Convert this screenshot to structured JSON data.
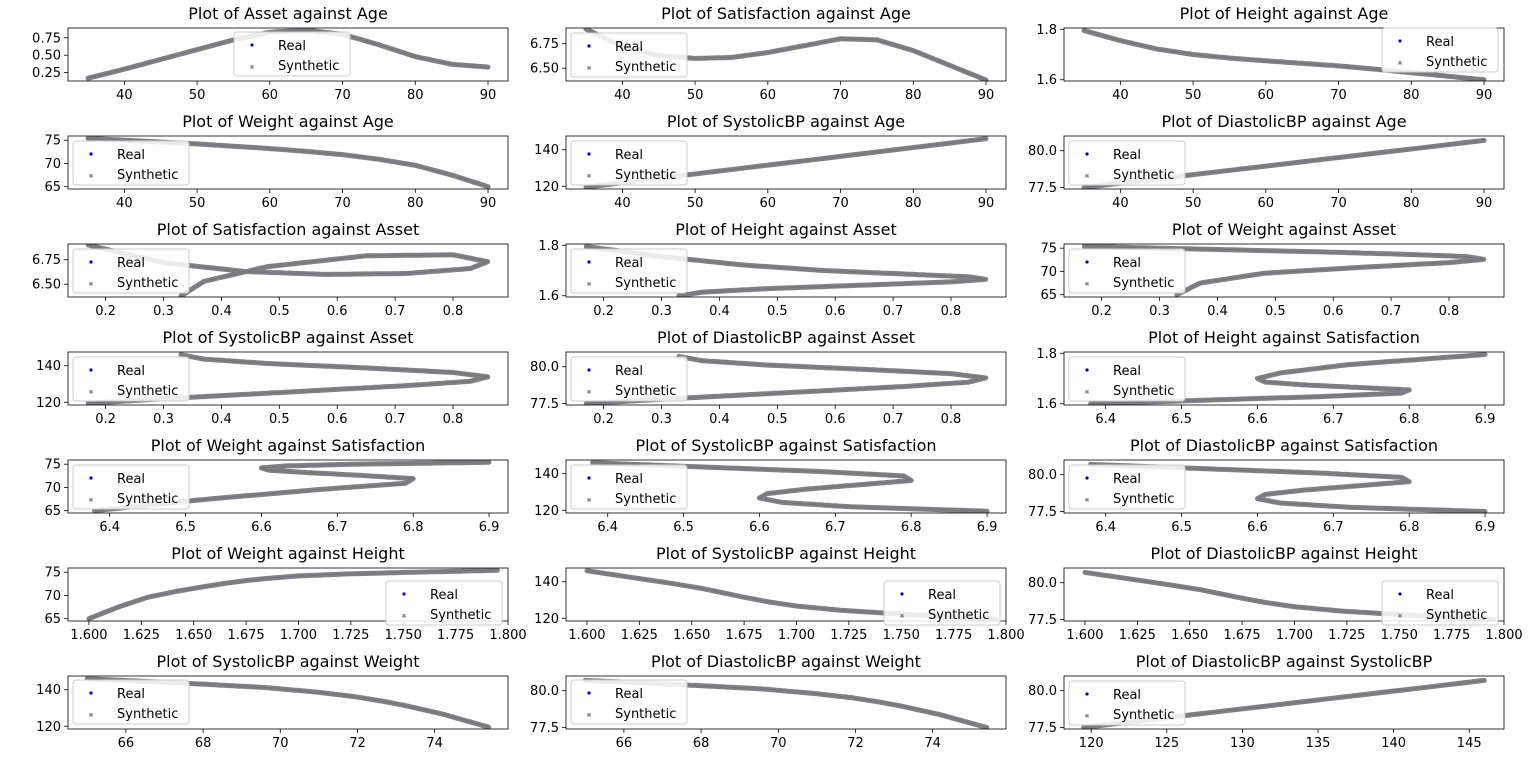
{
  "figure": {
    "legend_real": "Real",
    "legend_synthetic": "Synthetic",
    "synthetic_color": "#808080",
    "real_color": "#0000cc"
  },
  "chart_data": [
    {
      "type": "scatter",
      "title": "Plot of Asset against Age",
      "xlim": [
        32.25,
        92.75
      ],
      "ylim": [
        0.13,
        0.89
      ],
      "xticks": [
        40,
        50,
        60,
        70,
        80,
        90
      ],
      "yticks": [
        0.25,
        0.5,
        0.75
      ],
      "ytick_labels": [
        "0.25",
        "0.50",
        "0.75"
      ],
      "legend": "upper-center",
      "x": [
        35,
        40,
        45,
        50,
        55,
        60,
        65,
        70,
        75,
        80,
        85,
        90
      ],
      "y": [
        0.17,
        0.3,
        0.44,
        0.58,
        0.72,
        0.83,
        0.86,
        0.8,
        0.65,
        0.48,
        0.37,
        0.33
      ]
    },
    {
      "type": "scatter",
      "title": "Plot of Satisfaction against Age",
      "xlim": [
        32.25,
        92.75
      ],
      "ylim": [
        6.37,
        6.91
      ],
      "xticks": [
        40,
        50,
        60,
        70,
        80,
        90
      ],
      "yticks": [
        6.5,
        6.75
      ],
      "ytick_labels": [
        "6.50",
        "6.75"
      ],
      "legend": "upper-left",
      "x": [
        35,
        40,
        45,
        50,
        55,
        60,
        65,
        70,
        75,
        80,
        85,
        90
      ],
      "y": [
        6.9,
        6.72,
        6.63,
        6.6,
        6.61,
        6.66,
        6.73,
        6.8,
        6.79,
        6.68,
        6.53,
        6.38
      ]
    },
    {
      "type": "scatter",
      "title": "Plot of Height against Age",
      "xlim": [
        32.25,
        92.75
      ],
      "ylim": [
        1.595,
        1.805
      ],
      "xticks": [
        40,
        50,
        60,
        70,
        80,
        90
      ],
      "yticks": [
        1.6,
        1.8
      ],
      "ytick_labels": [
        "1.6",
        "1.8"
      ],
      "legend": "upper-right",
      "x": [
        35,
        40,
        45,
        50,
        55,
        60,
        65,
        70,
        75,
        80,
        85,
        90
      ],
      "y": [
        1.795,
        1.755,
        1.722,
        1.7,
        1.686,
        1.675,
        1.665,
        1.655,
        1.642,
        1.628,
        1.614,
        1.6
      ]
    },
    {
      "type": "scatter",
      "title": "Plot of Weight against Age",
      "xlim": [
        32.25,
        92.75
      ],
      "ylim": [
        64.5,
        75.9
      ],
      "xticks": [
        40,
        50,
        60,
        70,
        80,
        90
      ],
      "yticks": [
        65,
        70,
        75
      ],
      "ytick_labels": [
        "65",
        "70",
        "75"
      ],
      "legend": "upper-left",
      "x": [
        35,
        40,
        45,
        50,
        55,
        60,
        65,
        70,
        75,
        80,
        85,
        90
      ],
      "y": [
        75.4,
        75.0,
        74.6,
        74.2,
        73.7,
        73.2,
        72.6,
        71.9,
        70.9,
        69.6,
        67.5,
        65
      ]
    },
    {
      "type": "scatter",
      "title": "Plot of SystolicBP against Age",
      "xlim": [
        32.25,
        92.75
      ],
      "ylim": [
        118.5,
        147.5
      ],
      "xticks": [
        40,
        50,
        60,
        70,
        80,
        90
      ],
      "yticks": [
        120,
        140
      ],
      "ytick_labels": [
        "120",
        "140"
      ],
      "legend": "upper-left",
      "x": [
        35,
        90
      ],
      "y": [
        119.5,
        146
      ]
    },
    {
      "type": "scatter",
      "title": "Plot of DiastolicBP against Age",
      "xlim": [
        32.25,
        92.75
      ],
      "ylim": [
        77.4,
        81.0
      ],
      "xticks": [
        40,
        50,
        60,
        70,
        80,
        90
      ],
      "yticks": [
        77.5,
        80
      ],
      "ytick_labels": [
        "77.5",
        "80.0"
      ],
      "legend": "upper-left",
      "x": [
        35,
        90
      ],
      "y": [
        77.5,
        80.7
      ]
    },
    {
      "type": "scatter",
      "title": "Plot of Satisfaction against Asset",
      "xlim": [
        0.135,
        0.895
      ],
      "ylim": [
        6.37,
        6.91
      ],
      "xticks": [
        0.2,
        0.3,
        0.4,
        0.5,
        0.6,
        0.7,
        0.8
      ],
      "yticks": [
        6.5,
        6.75
      ],
      "ytick_labels": [
        "6.50",
        "6.75"
      ],
      "legend": "upper-left",
      "x": [
        0.17,
        0.3,
        0.44,
        0.58,
        0.72,
        0.83,
        0.86,
        0.8,
        0.65,
        0.48,
        0.37,
        0.33
      ],
      "y": [
        6.9,
        6.72,
        6.63,
        6.6,
        6.61,
        6.66,
        6.73,
        6.8,
        6.79,
        6.68,
        6.53,
        6.38
      ]
    },
    {
      "type": "scatter",
      "title": "Plot of Height against Asset",
      "xlim": [
        0.135,
        0.895
      ],
      "ylim": [
        1.595,
        1.805
      ],
      "xticks": [
        0.2,
        0.3,
        0.4,
        0.5,
        0.6,
        0.7,
        0.8
      ],
      "yticks": [
        1.6,
        1.8
      ],
      "ytick_labels": [
        "1.6",
        "1.8"
      ],
      "legend": "upper-left",
      "x": [
        0.17,
        0.3,
        0.44,
        0.58,
        0.72,
        0.83,
        0.86,
        0.8,
        0.65,
        0.48,
        0.37,
        0.33
      ],
      "y": [
        1.795,
        1.755,
        1.722,
        1.7,
        1.686,
        1.675,
        1.665,
        1.655,
        1.642,
        1.628,
        1.614,
        1.6
      ]
    },
    {
      "type": "scatter",
      "title": "Plot of Weight against Asset",
      "xlim": [
        0.135,
        0.895
      ],
      "ylim": [
        64.5,
        75.9
      ],
      "xticks": [
        0.2,
        0.3,
        0.4,
        0.5,
        0.6,
        0.7,
        0.8
      ],
      "yticks": [
        65,
        70,
        75
      ],
      "ytick_labels": [
        "65",
        "70",
        "75"
      ],
      "legend": "upper-left",
      "x": [
        0.17,
        0.3,
        0.44,
        0.58,
        0.72,
        0.83,
        0.86,
        0.8,
        0.65,
        0.48,
        0.37,
        0.33
      ],
      "y": [
        75.4,
        75.0,
        74.6,
        74.2,
        73.7,
        73.2,
        72.6,
        71.9,
        70.9,
        69.6,
        67.5,
        65
      ]
    },
    {
      "type": "scatter",
      "title": "Plot of SystolicBP against Asset",
      "xlim": [
        0.135,
        0.895
      ],
      "ylim": [
        118.5,
        147.5
      ],
      "xticks": [
        0.2,
        0.3,
        0.4,
        0.5,
        0.6,
        0.7,
        0.8
      ],
      "yticks": [
        120,
        140
      ],
      "ytick_labels": [
        "120",
        "140"
      ],
      "legend": "upper-left",
      "x": [
        0.17,
        0.3,
        0.44,
        0.58,
        0.72,
        0.83,
        0.86,
        0.8,
        0.65,
        0.48,
        0.37,
        0.33
      ],
      "y": [
        119.5,
        121.9,
        124.3,
        126.7,
        129.1,
        131.5,
        133.9,
        136.3,
        138.8,
        141.2,
        143.6,
        146
      ]
    },
    {
      "type": "scatter",
      "title": "Plot of DiastolicBP against Asset",
      "xlim": [
        0.135,
        0.895
      ],
      "ylim": [
        77.4,
        81.0
      ],
      "xticks": [
        0.2,
        0.3,
        0.4,
        0.5,
        0.6,
        0.7,
        0.8
      ],
      "yticks": [
        77.5,
        80
      ],
      "ytick_labels": [
        "77.5",
        "80.0"
      ],
      "legend": "upper-left",
      "x": [
        0.17,
        0.3,
        0.44,
        0.58,
        0.72,
        0.83,
        0.86,
        0.8,
        0.65,
        0.48,
        0.37,
        0.33
      ],
      "y": [
        77.5,
        77.79,
        78.08,
        78.37,
        78.66,
        78.95,
        79.24,
        79.53,
        79.82,
        80.12,
        80.41,
        80.7
      ]
    },
    {
      "type": "scatter",
      "title": "Plot of Height against Satisfaction",
      "xlim": [
        6.345,
        6.925
      ],
      "ylim": [
        1.595,
        1.805
      ],
      "xticks": [
        6.4,
        6.5,
        6.6,
        6.7,
        6.8,
        6.9
      ],
      "yticks": [
        1.6,
        1.8
      ],
      "ytick_labels": [
        "1.6",
        "1.8"
      ],
      "legend": "upper-left",
      "x": [
        6.9,
        6.72,
        6.63,
        6.6,
        6.61,
        6.66,
        6.73,
        6.8,
        6.79,
        6.68,
        6.53,
        6.38
      ],
      "y": [
        1.795,
        1.755,
        1.722,
        1.7,
        1.686,
        1.675,
        1.665,
        1.655,
        1.642,
        1.628,
        1.614,
        1.6
      ]
    },
    {
      "type": "scatter",
      "title": "Plot of Weight against Satisfaction",
      "xlim": [
        6.345,
        6.925
      ],
      "ylim": [
        64.5,
        75.9
      ],
      "xticks": [
        6.4,
        6.5,
        6.6,
        6.7,
        6.8,
        6.9
      ],
      "yticks": [
        65,
        70,
        75
      ],
      "ytick_labels": [
        "65",
        "70",
        "75"
      ],
      "legend": "upper-left",
      "x": [
        6.9,
        6.72,
        6.63,
        6.6,
        6.61,
        6.66,
        6.73,
        6.8,
        6.79,
        6.68,
        6.53,
        6.38
      ],
      "y": [
        75.4,
        75.0,
        74.6,
        74.2,
        73.7,
        73.2,
        72.6,
        71.9,
        70.9,
        69.6,
        67.5,
        65
      ]
    },
    {
      "type": "scatter",
      "title": "Plot of SystolicBP against Satisfaction",
      "xlim": [
        6.345,
        6.925
      ],
      "ylim": [
        118.5,
        147.5
      ],
      "xticks": [
        6.4,
        6.5,
        6.6,
        6.7,
        6.8,
        6.9
      ],
      "yticks": [
        120,
        140
      ],
      "ytick_labels": [
        "120",
        "140"
      ],
      "legend": "upper-left",
      "x": [
        6.38,
        6.53,
        6.68,
        6.79,
        6.8,
        6.73,
        6.66,
        6.61,
        6.6,
        6.63,
        6.72,
        6.9
      ],
      "y": [
        146,
        143.6,
        141.2,
        138.8,
        136.3,
        133.9,
        131.5,
        129.1,
        126.7,
        124.3,
        121.9,
        119.5
      ]
    },
    {
      "type": "scatter",
      "title": "Plot of DiastolicBP against Satisfaction",
      "xlim": [
        6.345,
        6.925
      ],
      "ylim": [
        77.4,
        81.0
      ],
      "xticks": [
        6.4,
        6.5,
        6.6,
        6.7,
        6.8,
        6.9
      ],
      "yticks": [
        77.5,
        80
      ],
      "ytick_labels": [
        "77.5",
        "80.0"
      ],
      "legend": "upper-left",
      "x": [
        6.38,
        6.53,
        6.68,
        6.79,
        6.8,
        6.73,
        6.66,
        6.61,
        6.6,
        6.63,
        6.72,
        6.9
      ],
      "y": [
        80.7,
        80.41,
        80.12,
        79.82,
        79.53,
        79.24,
        78.95,
        78.66,
        78.37,
        78.08,
        77.79,
        77.5
      ]
    },
    {
      "type": "scatter",
      "title": "Plot of Weight against Height",
      "xlim": [
        1.59,
        1.8
      ],
      "ylim": [
        64.5,
        75.9
      ],
      "xticks": [
        1.6,
        1.625,
        1.65,
        1.675,
        1.7,
        1.725,
        1.75,
        1.775,
        1.8
      ],
      "yticks": [
        65,
        70,
        75
      ],
      "ytick_labels": [
        "65",
        "70",
        "75"
      ],
      "xtick_labels": [
        "1.600",
        "1.625",
        "1.650",
        "1.675",
        "1.700",
        "1.725",
        "1.750",
        "1.775",
        "1.800"
      ],
      "legend": "lower-right",
      "x": [
        1.6,
        1.614,
        1.628,
        1.642,
        1.655,
        1.665,
        1.675,
        1.686,
        1.7,
        1.722,
        1.755,
        1.795
      ],
      "y": [
        65,
        67.5,
        69.6,
        70.9,
        71.9,
        72.6,
        73.2,
        73.7,
        74.2,
        74.6,
        75.0,
        75.4
      ]
    },
    {
      "type": "scatter",
      "title": "Plot of SystolicBP against Height",
      "xlim": [
        1.59,
        1.8
      ],
      "ylim": [
        118.5,
        147.5
      ],
      "xticks": [
        1.6,
        1.625,
        1.65,
        1.675,
        1.7,
        1.725,
        1.75,
        1.775,
        1.8
      ],
      "yticks": [
        120,
        140
      ],
      "ytick_labels": [
        "120",
        "140"
      ],
      "xtick_labels": [
        "1.600",
        "1.625",
        "1.650",
        "1.675",
        "1.700",
        "1.725",
        "1.750",
        "1.775",
        "1.800"
      ],
      "legend": "lower-right",
      "x": [
        1.6,
        1.614,
        1.628,
        1.642,
        1.655,
        1.665,
        1.675,
        1.686,
        1.7,
        1.722,
        1.755,
        1.795
      ],
      "y": [
        146,
        143.6,
        141.2,
        138.8,
        136.3,
        133.9,
        131.5,
        129.1,
        126.7,
        124.3,
        121.9,
        119.5
      ]
    },
    {
      "type": "scatter",
      "title": "Plot of DiastolicBP against Height",
      "xlim": [
        1.59,
        1.8
      ],
      "ylim": [
        77.4,
        81.0
      ],
      "xticks": [
        1.6,
        1.625,
        1.65,
        1.675,
        1.7,
        1.725,
        1.75,
        1.775,
        1.8
      ],
      "yticks": [
        77.5,
        80
      ],
      "ytick_labels": [
        "77.5",
        "80.0"
      ],
      "xtick_labels": [
        "1.600",
        "1.625",
        "1.650",
        "1.675",
        "1.700",
        "1.725",
        "1.750",
        "1.775",
        "1.800"
      ],
      "legend": "lower-right",
      "x": [
        1.6,
        1.614,
        1.628,
        1.642,
        1.655,
        1.665,
        1.675,
        1.686,
        1.7,
        1.722,
        1.755,
        1.795
      ],
      "y": [
        80.7,
        80.41,
        80.12,
        79.82,
        79.53,
        79.24,
        78.95,
        78.66,
        78.37,
        78.08,
        77.79,
        77.5
      ]
    },
    {
      "type": "scatter",
      "title": "Plot of SystolicBP against Weight",
      "xlim": [
        64.5,
        75.9
      ],
      "ylim": [
        118.5,
        147.5
      ],
      "xticks": [
        66,
        68,
        70,
        72,
        74
      ],
      "yticks": [
        120,
        140
      ],
      "ytick_labels": [
        "120",
        "140"
      ],
      "legend": "lower-left",
      "x": [
        65,
        67.5,
        69.6,
        70.9,
        71.9,
        72.6,
        73.2,
        73.7,
        74.2,
        74.6,
        75.0,
        75.4
      ],
      "y": [
        146,
        143.6,
        141.2,
        138.8,
        136.3,
        133.9,
        131.5,
        129.1,
        126.7,
        124.3,
        121.9,
        119.5
      ]
    },
    {
      "type": "scatter",
      "title": "Plot of DiastolicBP against Weight",
      "xlim": [
        64.5,
        75.9
      ],
      "ylim": [
        77.4,
        81.0
      ],
      "xticks": [
        66,
        68,
        70,
        72,
        74
      ],
      "yticks": [
        77.5,
        80
      ],
      "ytick_labels": [
        "77.5",
        "80.0"
      ],
      "legend": "lower-left",
      "x": [
        65,
        67.5,
        69.6,
        70.9,
        71.9,
        72.6,
        73.2,
        73.7,
        74.2,
        74.6,
        75.0,
        75.4
      ],
      "y": [
        80.7,
        80.41,
        80.12,
        79.82,
        79.53,
        79.24,
        78.95,
        78.66,
        78.37,
        78.08,
        77.79,
        77.5
      ]
    },
    {
      "type": "scatter",
      "title": "Plot of DiastolicBP against SystolicBP",
      "xlim": [
        118.2,
        147.3
      ],
      "ylim": [
        77.4,
        81.0
      ],
      "xticks": [
        120,
        125,
        130,
        135,
        140,
        145
      ],
      "yticks": [
        77.5,
        80
      ],
      "ytick_labels": [
        "77.5",
        "80.0"
      ],
      "legend": "upper-left",
      "x": [
        119.5,
        146
      ],
      "y": [
        77.5,
        80.7
      ]
    }
  ]
}
